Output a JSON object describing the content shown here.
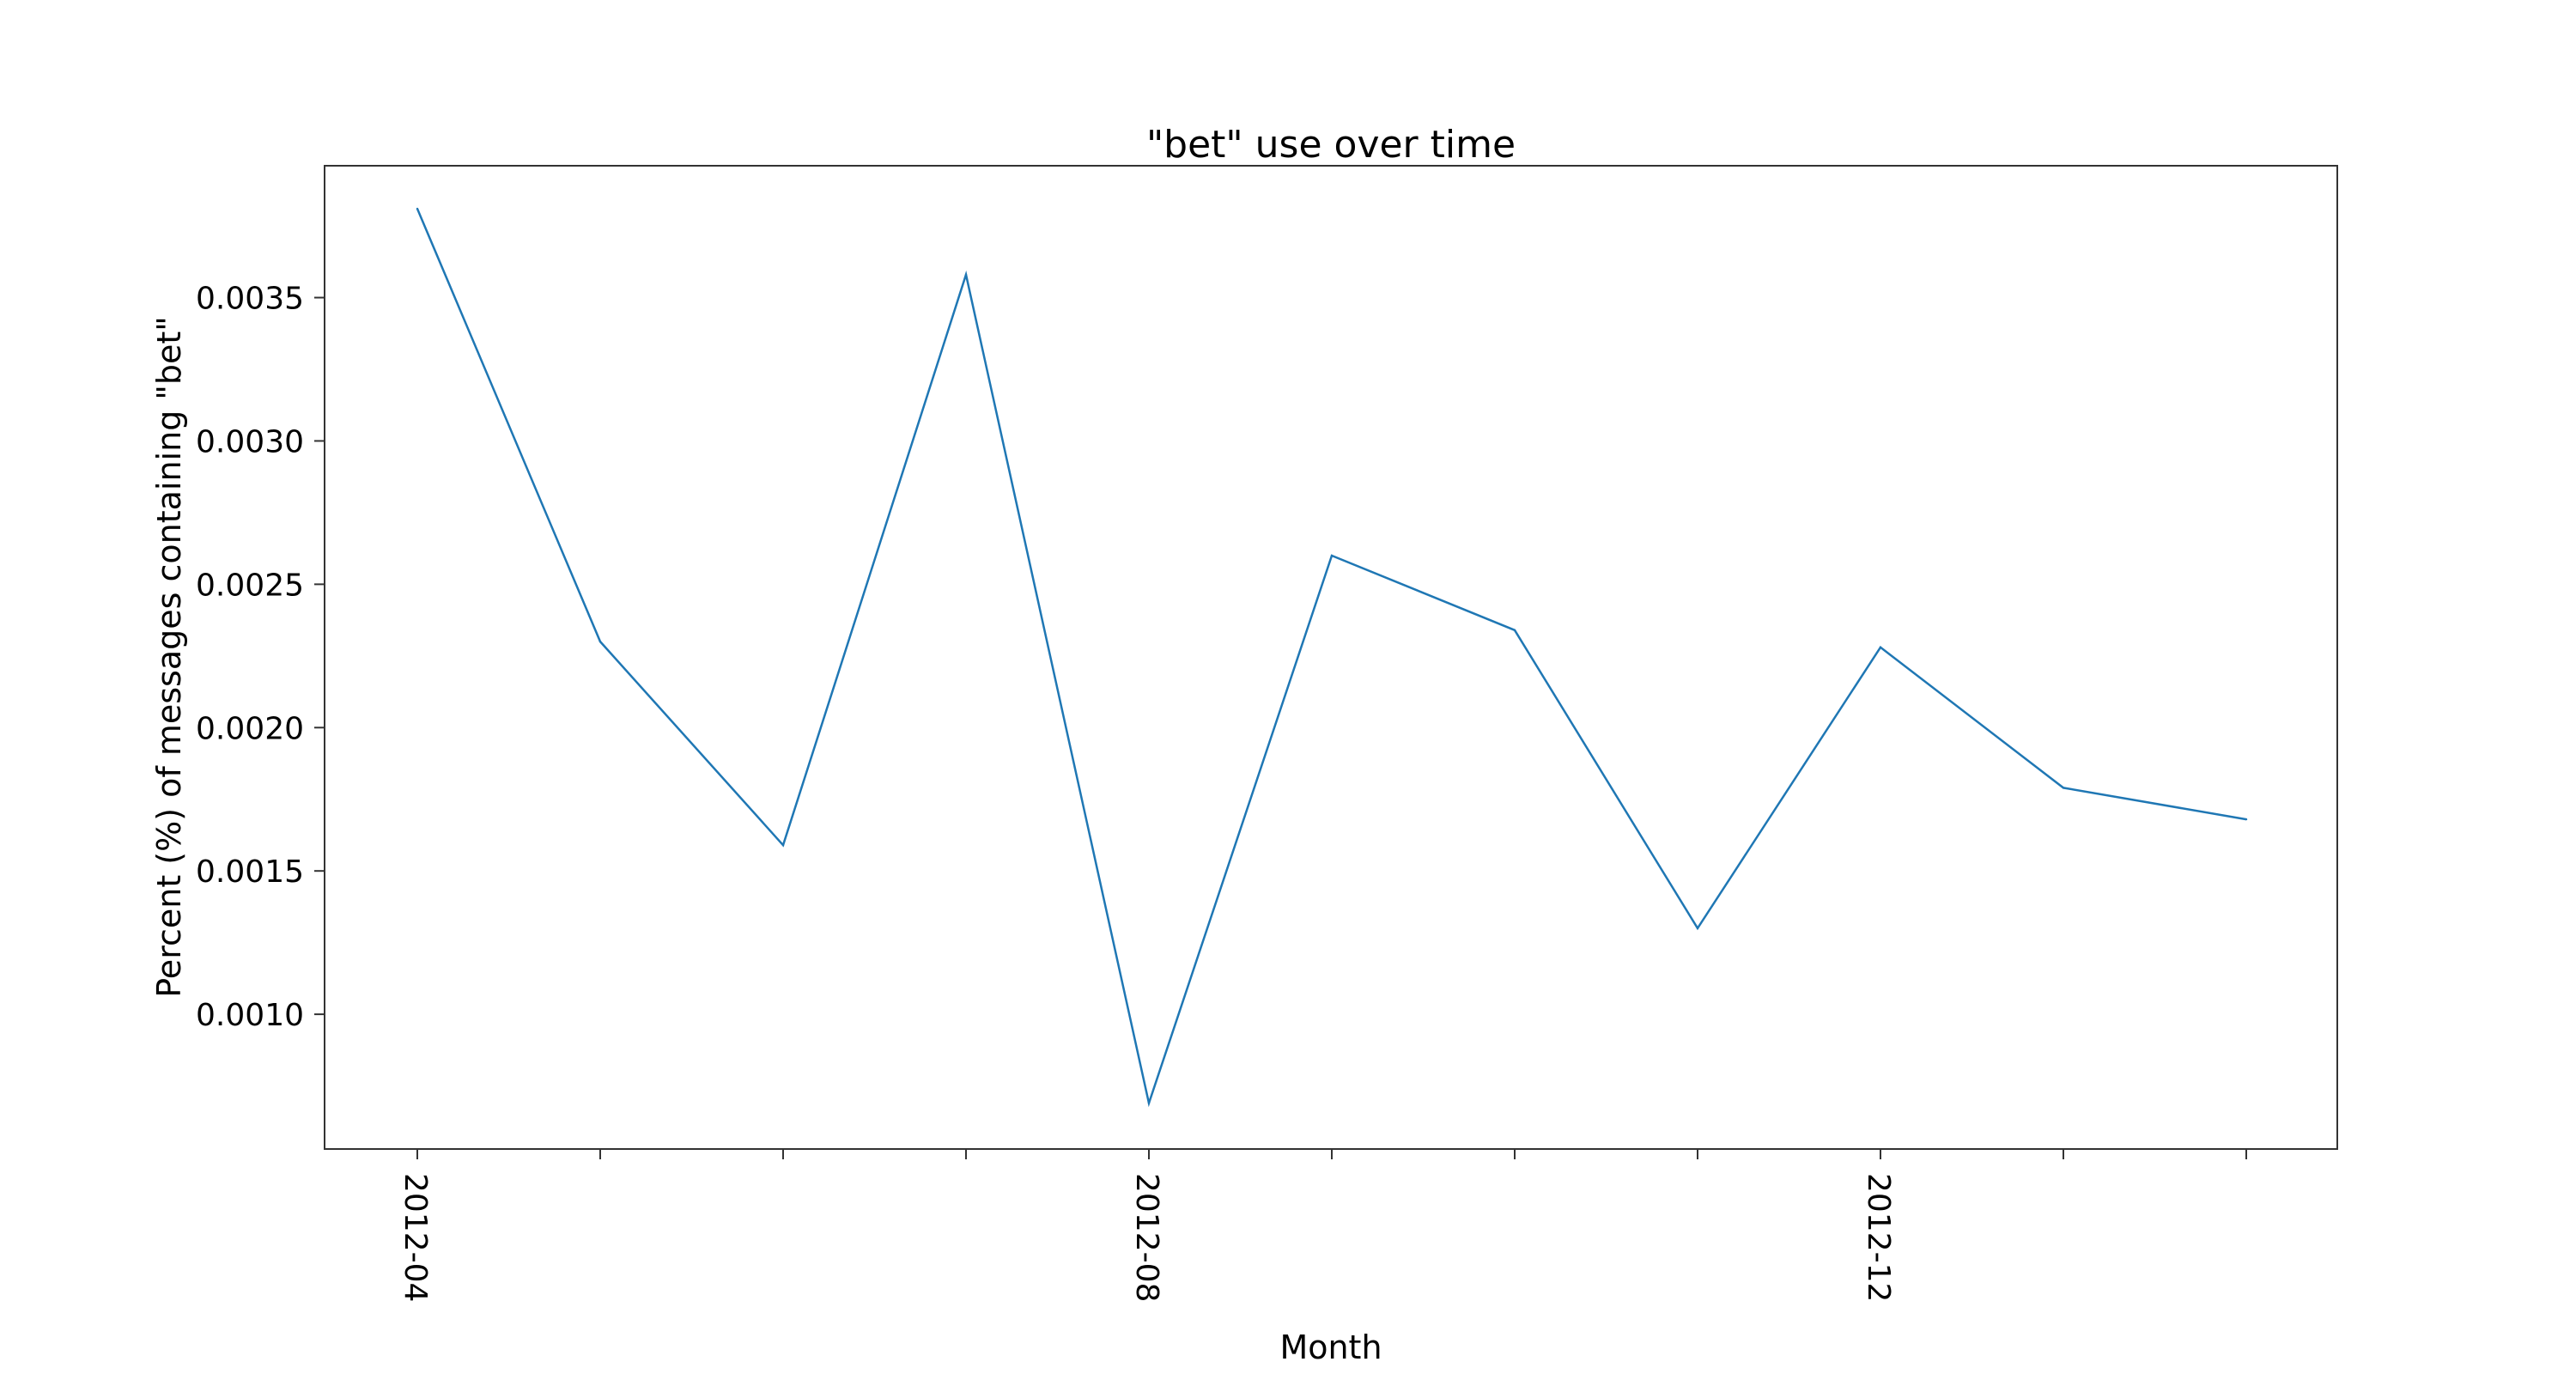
{
  "chart_data": {
    "type": "line",
    "title": "\"bet\" use over time",
    "xlabel": "Month",
    "ylabel": "Percent (%) of messages containing \"bet\"",
    "x": [
      "2012-04",
      "2012-05",
      "2012-06",
      "2012-07",
      "2012-08",
      "2012-09",
      "2012-10",
      "2012-11",
      "2012-12",
      "2013-01",
      "2013-02"
    ],
    "x_tick_labels": [
      "2012-04",
      "2012-08",
      "2012-12"
    ],
    "series": [
      {
        "values": [
          0.00381,
          0.0023,
          0.00159,
          0.00358,
          0.00069,
          0.0026,
          0.00234,
          0.0013,
          0.00228,
          0.00179,
          0.00168
        ]
      }
    ],
    "y_ticks": [
      0.001,
      0.0015,
      0.002,
      0.0025,
      0.003,
      0.0035
    ],
    "y_tick_labels": [
      "0.0010",
      "0.0015",
      "0.0020",
      "0.0025",
      "0.0030",
      "0.0035"
    ],
    "ylim": [
      0.00053,
      0.00396
    ],
    "grid": false,
    "legend": "none",
    "line_color": "#1f77b4"
  }
}
